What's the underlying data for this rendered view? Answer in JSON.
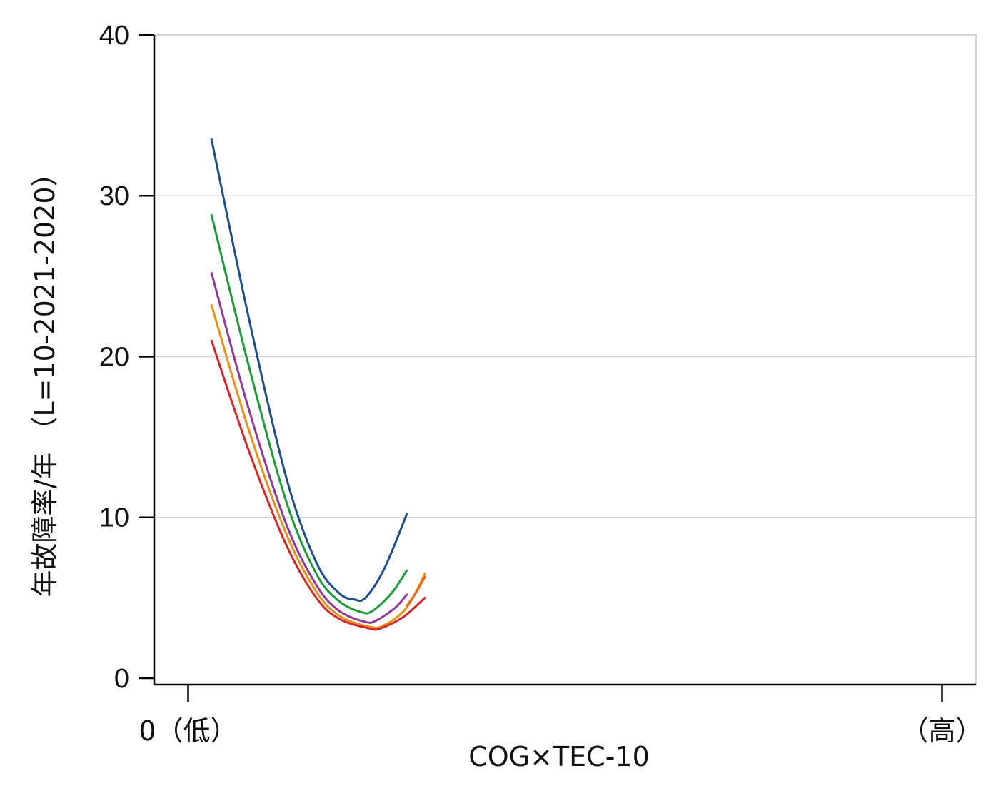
{
  "chart_data": {
    "type": "line",
    "xlabel": "COG×TEC-10",
    "ylabel": "年故障率/年 （L=10-2021-2020）",
    "x_tick_labels": [
      {
        "value": 0,
        "label": "0（低）"
      },
      {
        "value": 100,
        "label": "（高）"
      }
    ],
    "xlim": [
      -4.5,
      104.5
    ],
    "ylim": [
      -0.4,
      40
    ],
    "y_ticks": [
      0,
      10,
      20,
      30,
      40
    ],
    "grid": "horizontal",
    "series": [
      {
        "color": "#1f4e8c",
        "x": [
          3.1,
          8.0,
          13.0,
          17.0,
          20.0,
          22.0,
          23.5,
          26.0,
          29.0
        ],
        "y": [
          33.5,
          22.5,
          12.5,
          7.2,
          5.3,
          4.9,
          5.0,
          6.8,
          10.2
        ]
      },
      {
        "color": "#1f9a3a",
        "x": [
          3.1,
          8.0,
          13.0,
          17.0,
          20.0,
          23.0,
          24.5,
          27.0,
          29.0
        ],
        "y": [
          28.8,
          19.5,
          11.0,
          6.5,
          4.8,
          4.1,
          4.2,
          5.3,
          6.7
        ]
      },
      {
        "color": "#8e3a9a",
        "x": [
          3.1,
          8.0,
          13.0,
          17.0,
          20.0,
          23.5,
          25.0,
          27.5,
          29.0
        ],
        "y": [
          25.2,
          16.8,
          9.6,
          5.8,
          4.2,
          3.5,
          3.6,
          4.4,
          5.2
        ]
      },
      {
        "color": "#e8921c",
        "x": [
          3.1,
          8.0,
          13.0,
          17.0,
          20.0,
          24.0,
          26.0,
          29.0,
          31.4
        ],
        "y": [
          23.2,
          15.5,
          9.0,
          5.4,
          3.9,
          3.2,
          3.3,
          4.4,
          6.5
        ]
      },
      {
        "color": "#e46a1c",
        "x": [
          29.0,
          30.2,
          31.4
        ],
        "y": [
          4.5,
          5.3,
          6.3
        ]
      },
      {
        "color": "#d62728",
        "x": [
          3.1,
          8.0,
          13.0,
          17.0,
          20.0,
          24.0,
          25.5,
          28.5,
          31.4
        ],
        "y": [
          21.0,
          14.2,
          8.3,
          5.0,
          3.7,
          3.1,
          3.1,
          3.8,
          5.0
        ]
      }
    ]
  }
}
